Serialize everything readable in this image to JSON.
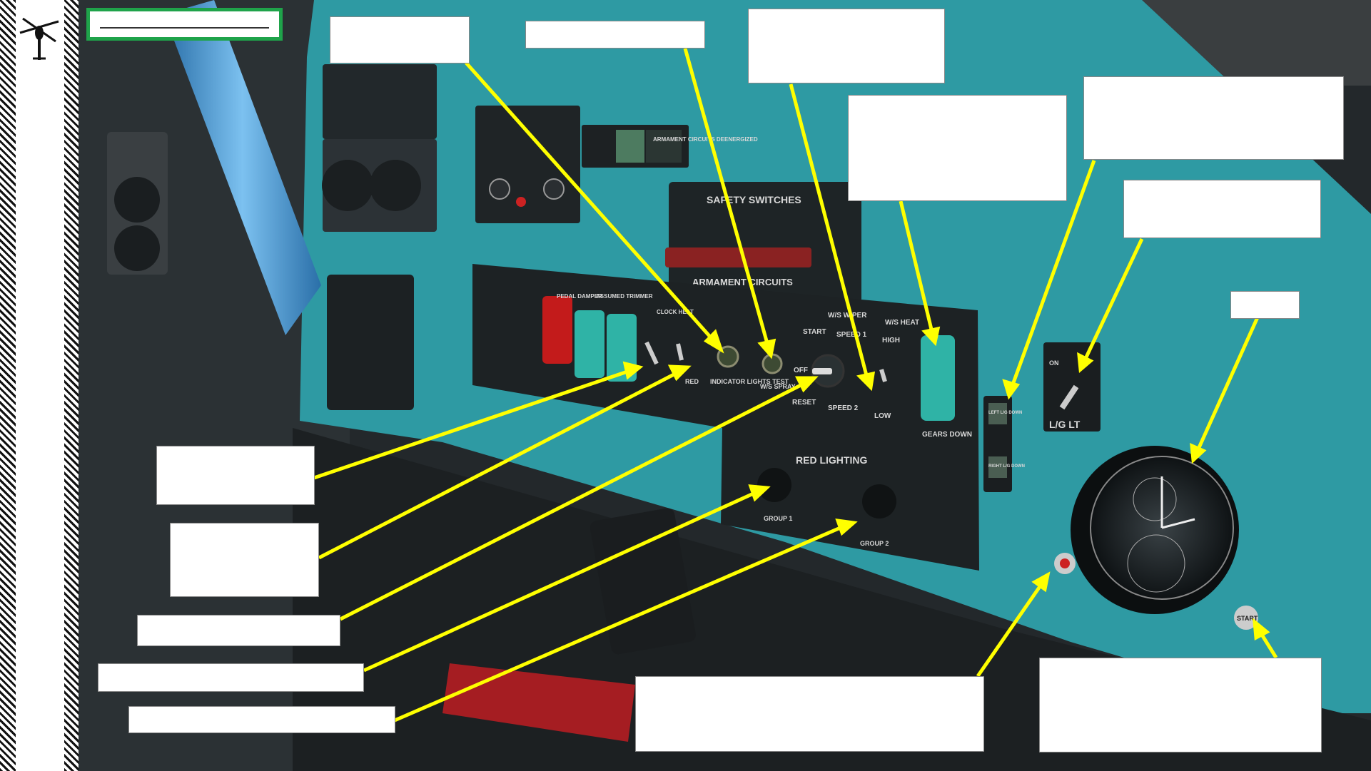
{
  "header": {
    "title": ""
  },
  "panel_labels": {
    "safety_switches": "SAFETY SWITCHES",
    "armament_circuits": "ARMAMENT CIRCUITS",
    "red_lighting": "RED LIGHTING",
    "group1": "GROUP 1",
    "group2": "GROUP 2",
    "indicator_lights_test": "INDICATOR LIGHTS TEST",
    "ws_spray": "W/S SPRAY",
    "ws_wiper": "W/S WIPER",
    "start": "START",
    "speed1": "SPEED 1",
    "speed2": "SPEED 2",
    "off": "OFF",
    "reset": "RESET",
    "ws_heat": "W/S HEAT",
    "high": "HIGH",
    "low": "LOW",
    "gears_down": "GEARS DOWN",
    "lg_lt": "L/G LT",
    "on": "ON",
    "left_lg_down": "LEFT L/G DOWN",
    "right_lg_down": "RIGHT L/G DOWN",
    "armament_circuits_deenergized": "ARMAMENT CIRCUITS DEENERGIZED",
    "pedal_damper": "PEDAL DAMPER",
    "assumed_trimmer": "ASSUMED TRIMMER",
    "clock_heat": "CLOCK HEAT",
    "red": "RED",
    "start_knob": "START"
  },
  "callouts": [
    {
      "id": "top-left",
      "text": ""
    },
    {
      "id": "top-mid",
      "text": ""
    },
    {
      "id": "top-right-1",
      "text": ""
    },
    {
      "id": "mid-right-1",
      "text": ""
    },
    {
      "id": "right-1",
      "text": ""
    },
    {
      "id": "right-2",
      "text": ""
    },
    {
      "id": "clock",
      "text": ""
    },
    {
      "id": "left-1",
      "text": ""
    },
    {
      "id": "left-2",
      "text": ""
    },
    {
      "id": "left-3",
      "text": ""
    },
    {
      "id": "left-4",
      "text": ""
    },
    {
      "id": "left-5",
      "text": ""
    },
    {
      "id": "bottom-mid",
      "text": ""
    },
    {
      "id": "bottom-right",
      "text": ""
    }
  ],
  "colors": {
    "panel": "#2e9aa3",
    "panel_dark": "#1f2224",
    "arrow": "#ffff00",
    "title_border": "#1fa34a"
  },
  "icons": {
    "sidebar": "helicopter-icon"
  }
}
